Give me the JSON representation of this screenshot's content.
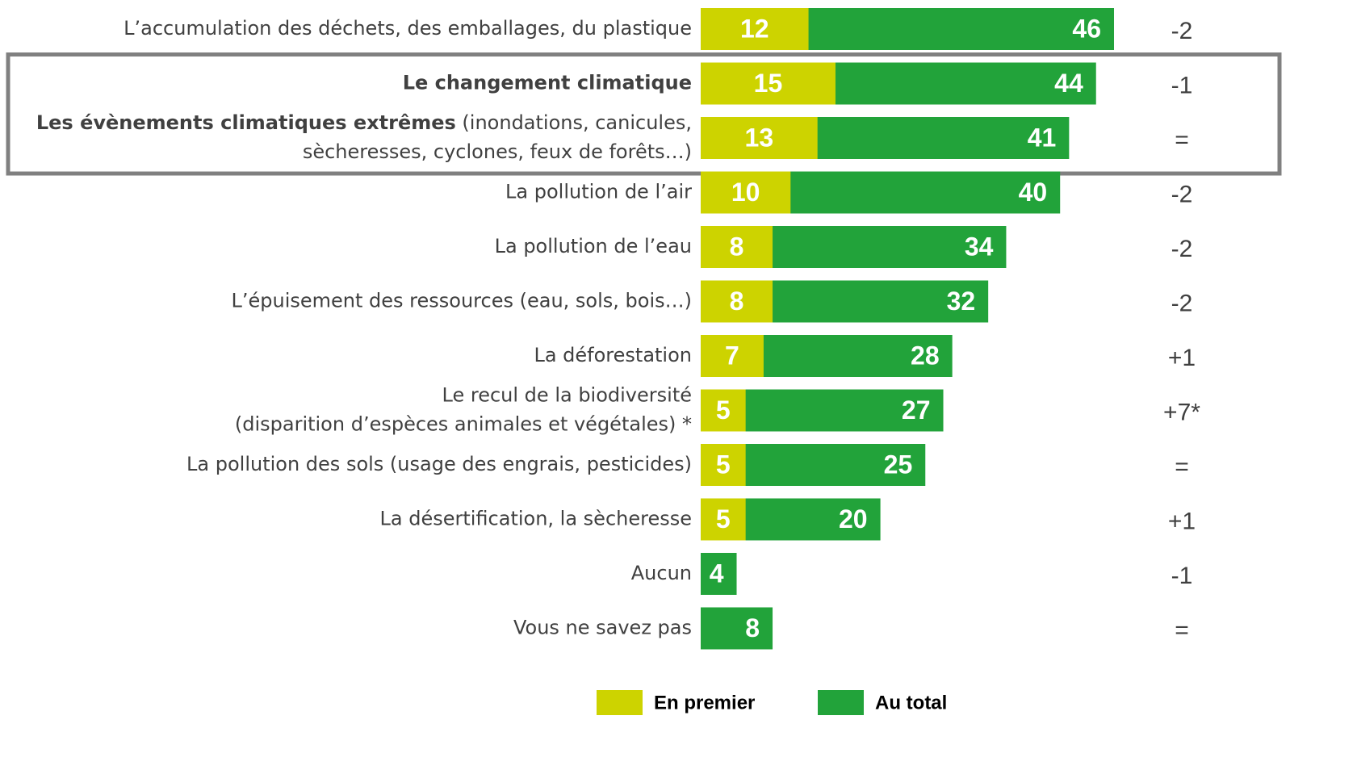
{
  "chart_data": {
    "type": "bar",
    "orientation": "horizontal",
    "overlay": true,
    "categories": [
      [
        [
          "L’accumulation des déchets, des emballages, du plastique"
        ]
      ],
      [
        [
          {
            "text": "Le changement climatique",
            "bold": true
          }
        ]
      ],
      [
        [
          {
            "text": "Les évènements climatiques extrêmes",
            "bold": true
          },
          " (inondations, canicules,"
        ],
        [
          "sècheresses, cyclones, feux de forêts…)"
        ]
      ],
      [
        [
          "La pollution de l’air"
        ]
      ],
      [
        [
          "La pollution de l’eau"
        ]
      ],
      [
        [
          "L’épuisement des ressources (eau, sols, bois…)"
        ]
      ],
      [
        [
          "La déforestation"
        ]
      ],
      [
        [
          "Le recul de la biodiversité"
        ],
        [
          "(disparition d’espèces animales et végétales) *"
        ]
      ],
      [
        [
          "La pollution des sols (usage des engrais, pesticides)"
        ]
      ],
      [
        [
          "La désertification, la sècheresse"
        ]
      ],
      [
        [
          "Aucun"
        ]
      ],
      [
        [
          "Vous ne savez pas"
        ]
      ]
    ],
    "series": [
      {
        "name": "Au total",
        "color": "#22a33a",
        "values": [
          46,
          44,
          41,
          40,
          34,
          32,
          28,
          27,
          25,
          20,
          4,
          8
        ]
      },
      {
        "name": "En premier",
        "color": "#cdd300",
        "values": [
          12,
          15,
          13,
          10,
          8,
          8,
          7,
          5,
          5,
          5,
          null,
          null
        ]
      }
    ],
    "legend_order": [
      1,
      0
    ],
    "changes": [
      "-2",
      "-1",
      "=",
      "-2",
      "-2",
      "-2",
      "+1",
      "+7*",
      "=",
      "+1",
      "-1",
      "="
    ],
    "highlight": [
      1,
      2
    ],
    "xlim": [
      0,
      46
    ]
  }
}
